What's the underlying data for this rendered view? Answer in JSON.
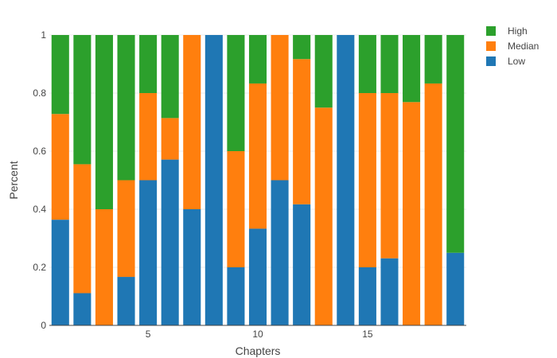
{
  "chart_data": {
    "type": "bar",
    "stacked": true,
    "title": "",
    "xlabel": "Chapters",
    "ylabel": "Percent",
    "x": [
      1,
      2,
      3,
      4,
      5,
      6,
      7,
      8,
      9,
      10,
      11,
      12,
      13,
      14,
      15,
      16,
      17,
      18,
      19
    ],
    "xlim": [
      0.5,
      19.5
    ],
    "ylim": [
      0,
      1
    ],
    "x_ticks": [
      5,
      10,
      15
    ],
    "y_ticks": [
      0,
      0.2,
      0.4,
      0.6,
      0.8,
      1
    ],
    "y_tick_labels": [
      "0",
      "0.2",
      "0.4",
      "0.6",
      "0.8",
      "1"
    ],
    "grid": true,
    "legend_position": "top-right",
    "series": [
      {
        "name": "Low",
        "color": "#1f77b4",
        "values": [
          0.364,
          0.111,
          0,
          0.167,
          0.5,
          0.571,
          0.4,
          1,
          0.2,
          0.333,
          0.5,
          0.417,
          0,
          1,
          0.2,
          0.231,
          0,
          0,
          0.25
        ]
      },
      {
        "name": "Median",
        "color": "#ff7f0e",
        "values": [
          0.364,
          0.444,
          0.4,
          0.333,
          0.3,
          0.143,
          0.6,
          0,
          0.4,
          0.5,
          0.5,
          0.5,
          0.75,
          0,
          0.6,
          0.569,
          0.769,
          0.833,
          0
        ]
      },
      {
        "name": "High",
        "color": "#2ca02c",
        "values": [
          0.272,
          0.445,
          0.6,
          0.5,
          0.2,
          0.286,
          0,
          0,
          0.4,
          0.167,
          0,
          0.083,
          0.25,
          0,
          0.2,
          0.2,
          0.231,
          0.167,
          0.75
        ]
      }
    ],
    "legend_order": [
      "High",
      "Median",
      "Low"
    ]
  }
}
